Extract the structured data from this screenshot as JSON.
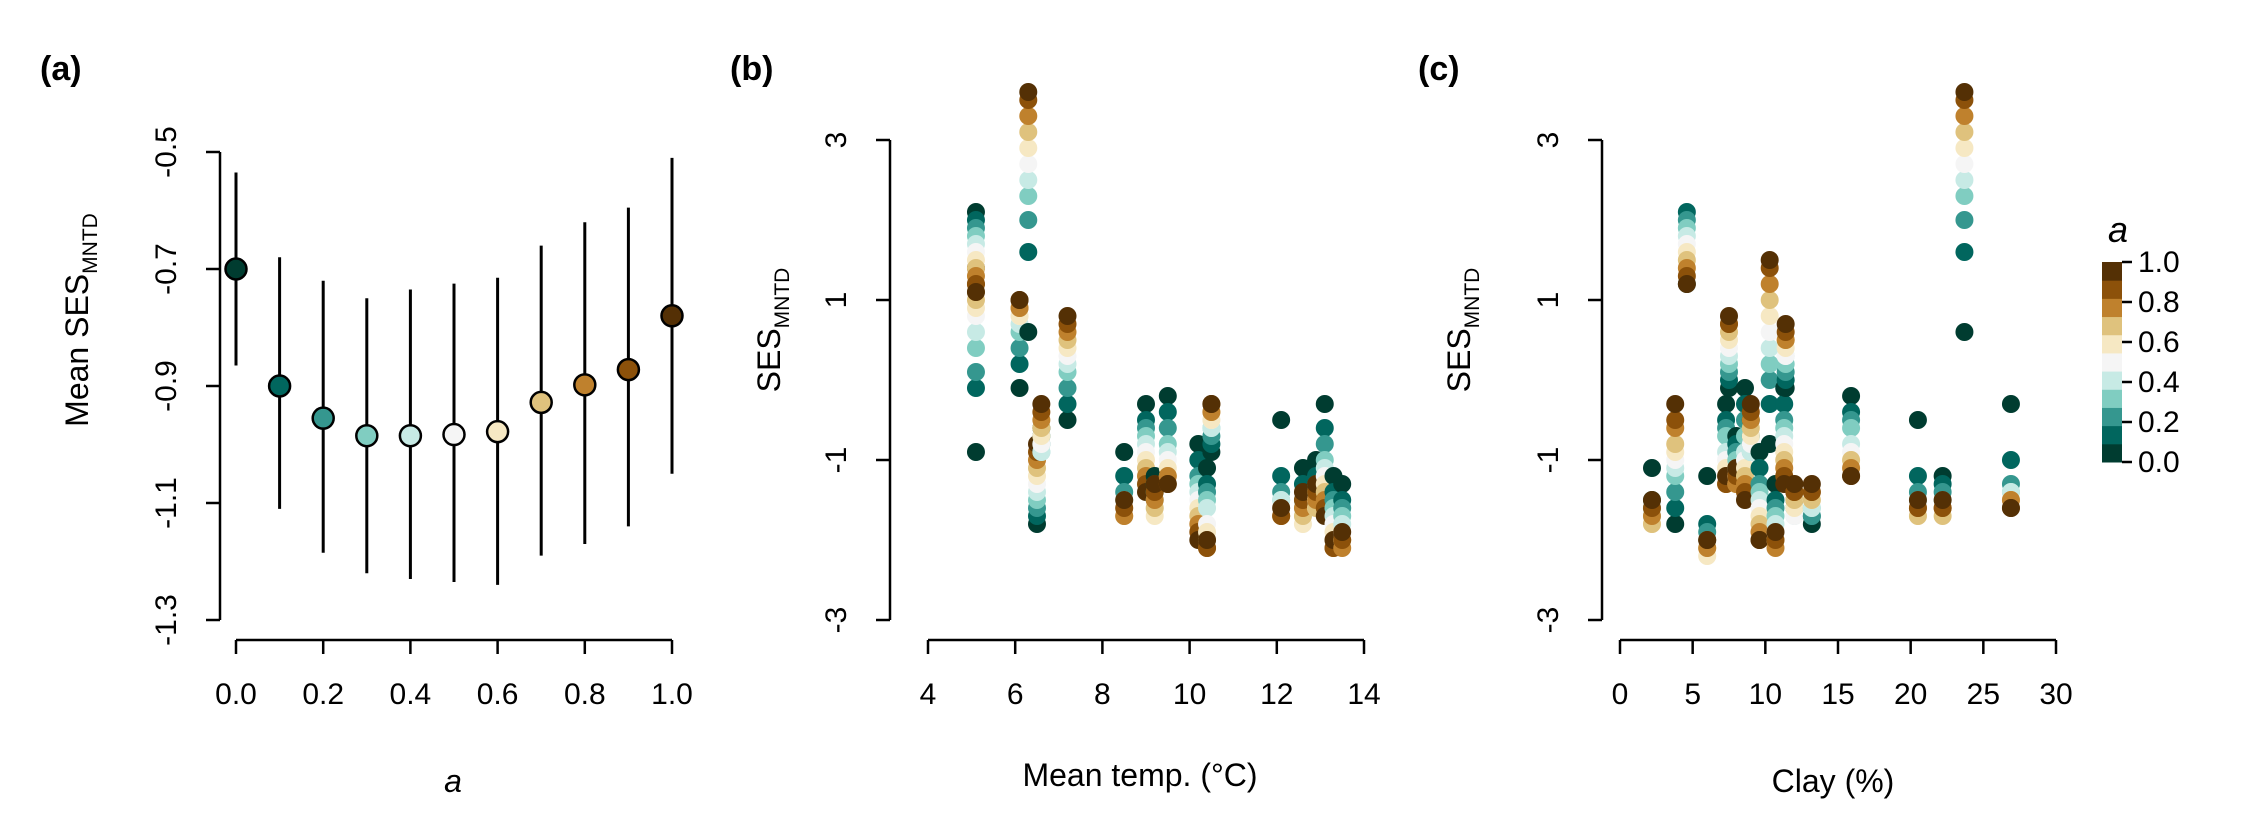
{
  "figure": {
    "background": "#ffffff"
  },
  "palette": [
    "#003c30",
    "#01665e",
    "#35978f",
    "#80cdc1",
    "#c7eae5",
    "#f5f5f5",
    "#f6e8c3",
    "#dfc27d",
    "#bf812d",
    "#8c510a",
    "#543005"
  ],
  "panels": {
    "a": {
      "label": "(a)",
      "xlabel": "a",
      "ylabel_main": "Mean SES",
      "ylabel_sub": "MNTD",
      "xticks": [
        "0.0",
        "0.2",
        "0.4",
        "0.6",
        "0.8",
        "1.0"
      ],
      "yticks": [
        "-0.5",
        "-0.7",
        "-0.9",
        "-1.1",
        "-1.3"
      ]
    },
    "b": {
      "label": "(b)",
      "xlabel": "Mean temp. (°C)",
      "ylabel_main": "SES",
      "ylabel_sub": "MNTD",
      "xticks": [
        "4",
        "6",
        "8",
        "10",
        "12",
        "14"
      ],
      "yticks": [
        "3",
        "1",
        "-1",
        "-3"
      ]
    },
    "c": {
      "label": "(c)",
      "xlabel": "Clay (%)",
      "ylabel_main": "SES",
      "ylabel_sub": "MNTD",
      "xticks": [
        "0",
        "5",
        "10",
        "15",
        "20",
        "25",
        "30"
      ],
      "yticks": [
        "3",
        "1",
        "-1",
        "-3"
      ]
    }
  },
  "legend": {
    "title": "a",
    "labels": [
      "1.0",
      "0.8",
      "0.6",
      "0.4",
      "0.2",
      "0.0"
    ]
  },
  "chart_data": [
    {
      "type": "scatter",
      "panel": "a",
      "x": [
        0.0,
        0.1,
        0.2,
        0.3,
        0.4,
        0.5,
        0.6,
        0.7,
        0.8,
        0.9,
        1.0
      ],
      "y": [
        -0.7,
        -0.9,
        -0.955,
        -0.985,
        -0.985,
        -0.983,
        -0.978,
        -0.928,
        -0.898,
        -0.872,
        -0.78
      ],
      "ci_low": [
        -0.865,
        -1.11,
        -1.185,
        -1.22,
        -1.23,
        -1.235,
        -1.24,
        -1.19,
        -1.17,
        -1.14,
        -1.05
      ],
      "ci_high": [
        -0.535,
        -0.68,
        -0.72,
        -0.75,
        -0.735,
        -0.725,
        -0.715,
        -0.66,
        -0.62,
        -0.595,
        -0.51
      ],
      "xlabel": "a",
      "ylabel": "Mean SESMNTD",
      "xlim": [
        0,
        1
      ],
      "ylim": [
        -1.3,
        -0.5
      ],
      "grid": false
    },
    {
      "type": "scatter",
      "panel": "b",
      "xlabel": "Mean temp. (°C)",
      "ylabel": "SESMNTD",
      "xlim": [
        4,
        14
      ],
      "ylim": [
        -3,
        3
      ],
      "grid": false,
      "color_by": "a",
      "a_levels": [
        0.0,
        0.1,
        0.2,
        0.3,
        0.4,
        0.5,
        0.6,
        0.7,
        0.8,
        0.9,
        1.0
      ],
      "sites": [
        {
          "x": 5.1,
          "y": [
            -0.9,
            -0.1,
            0.1,
            0.4,
            0.6,
            0.8,
            0.9,
            1.0,
            1.1,
            1.2,
            1.4
          ]
        },
        {
          "x": 5.1,
          "y": [
            2.1,
            2.0,
            1.9,
            1.8,
            1.7,
            1.6,
            1.5,
            1.4,
            1.3,
            1.2,
            1.1
          ]
        },
        {
          "x": 6.1,
          "y": [
            -0.1,
            0.2,
            0.4,
            0.6,
            0.7,
            0.8,
            0.8,
            0.9,
            0.9,
            1.0,
            1.0
          ]
        },
        {
          "x": 6.3,
          "y": [
            0.6,
            1.6,
            2.0,
            2.3,
            2.5,
            2.7,
            2.9,
            3.1,
            3.3,
            3.5,
            3.6
          ]
        },
        {
          "x": 6.5,
          "y": [
            -1.8,
            -1.7,
            -1.6,
            -1.5,
            -1.4,
            -1.3,
            -1.2,
            -1.1,
            -1.0,
            -0.9,
            -0.8
          ]
        },
        {
          "x": 6.6,
          "y": [
            -0.6,
            -0.7,
            -0.8,
            -0.9,
            -0.9,
            -0.8,
            -0.7,
            -0.6,
            -0.5,
            -0.4,
            -0.3
          ]
        },
        {
          "x": 7.2,
          "y": [
            -0.5,
            -0.3,
            -0.1,
            0.1,
            0.2,
            0.3,
            0.4,
            0.5,
            0.6,
            0.7,
            0.8
          ]
        },
        {
          "x": 8.5,
          "y": [
            -0.9,
            -1.2,
            -1.4,
            -1.5,
            -1.5,
            -1.6,
            -1.6,
            -1.7,
            -1.7,
            -1.6,
            -1.5
          ]
        },
        {
          "x": 9.0,
          "y": [
            -0.3,
            -0.5,
            -0.6,
            -0.7,
            -0.8,
            -0.9,
            -1.0,
            -1.1,
            -1.2,
            -1.3,
            -1.4
          ]
        },
        {
          "x": 9.2,
          "y": [
            -1.2,
            -1.3,
            -1.4,
            -1.5,
            -1.6,
            -1.6,
            -1.7,
            -1.6,
            -1.5,
            -1.4,
            -1.3
          ]
        },
        {
          "x": 9.5,
          "y": [
            -0.2,
            -0.4,
            -0.6,
            -0.8,
            -0.9,
            -1.0,
            -1.1,
            -1.2,
            -1.2,
            -1.3,
            -1.3
          ]
        },
        {
          "x": 10.2,
          "y": [
            -0.8,
            -1.0,
            -1.2,
            -1.3,
            -1.4,
            -1.5,
            -1.6,
            -1.7,
            -1.8,
            -1.9,
            -2.0
          ]
        },
        {
          "x": 10.4,
          "y": [
            -1.1,
            -1.3,
            -1.4,
            -1.5,
            -1.6,
            -1.8,
            -1.9,
            -2.0,
            -2.1,
            -2.1,
            -2.0
          ]
        },
        {
          "x": 10.5,
          "y": [
            -0.9,
            -0.8,
            -0.7,
            -0.6,
            -0.6,
            -0.5,
            -0.5,
            -0.4,
            -0.4,
            -0.3,
            -0.3
          ]
        },
        {
          "x": 12.1,
          "y": [
            -0.5,
            -1.2,
            -1.4,
            -1.5,
            -1.5,
            -1.6,
            -1.6,
            -1.7,
            -1.7,
            -1.7,
            -1.6
          ]
        },
        {
          "x": 12.6,
          "y": [
            -1.1,
            -1.3,
            -1.5,
            -1.6,
            -1.7,
            -1.8,
            -1.8,
            -1.7,
            -1.6,
            -1.5,
            -1.4
          ]
        },
        {
          "x": 12.9,
          "y": [
            -1.0,
            -1.2,
            -1.3,
            -1.4,
            -1.5,
            -1.5,
            -1.6,
            -1.6,
            -1.5,
            -1.4,
            -1.3
          ]
        },
        {
          "x": 13.1,
          "y": [
            -0.3,
            -0.6,
            -0.8,
            -1.0,
            -1.1,
            -1.2,
            -1.3,
            -1.4,
            -1.5,
            -1.6,
            -1.7
          ]
        },
        {
          "x": 13.3,
          "y": [
            -1.2,
            -1.4,
            -1.5,
            -1.6,
            -1.7,
            -1.8,
            -1.9,
            -2.0,
            -2.1,
            -2.1,
            -2.0
          ]
        },
        {
          "x": 13.5,
          "y": [
            -1.3,
            -1.5,
            -1.6,
            -1.7,
            -1.8,
            -1.9,
            -2.0,
            -2.0,
            -2.1,
            -2.0,
            -1.9
          ]
        }
      ]
    },
    {
      "type": "scatter",
      "panel": "c",
      "xlabel": "Clay (%)",
      "ylabel": "SESMNTD",
      "xlim": [
        0,
        30
      ],
      "ylim": [
        -3,
        3
      ],
      "grid": false,
      "color_by": "a",
      "a_levels": [
        0.0,
        0.1,
        0.2,
        0.3,
        0.4,
        0.5,
        0.6,
        0.7,
        0.8,
        0.9,
        1.0
      ],
      "sites": [
        {
          "x": 2.2,
          "y": [
            -1.1,
            -1.5,
            -1.6,
            -1.7,
            -1.7,
            -1.8,
            -1.8,
            -1.8,
            -1.7,
            -1.6,
            -1.5
          ]
        },
        {
          "x": 3.8,
          "y": [
            -1.8,
            -1.6,
            -1.4,
            -1.2,
            -1.1,
            -1.0,
            -0.9,
            -0.8,
            -0.6,
            -0.5,
            -0.3
          ]
        },
        {
          "x": 4.6,
          "y": [
            1.2,
            2.1,
            2.0,
            1.9,
            1.8,
            1.7,
            1.6,
            1.5,
            1.4,
            1.3,
            1.2
          ]
        },
        {
          "x": 6.0,
          "y": [
            -1.2,
            -1.8,
            -1.9,
            -2.0,
            -2.1,
            -2.2,
            -2.2,
            -2.1,
            -2.1,
            -2.0,
            -2.0
          ]
        },
        {
          "x": 7.3,
          "y": [
            -0.3,
            -0.5,
            -0.6,
            -0.7,
            -0.9,
            -1.0,
            -1.1,
            -1.2,
            -1.3,
            -1.3,
            -1.2
          ]
        },
        {
          "x": 7.5,
          "y": [
            -0.1,
            0.0,
            0.1,
            0.2,
            0.3,
            0.4,
            0.5,
            0.6,
            0.7,
            0.7,
            0.8
          ]
        },
        {
          "x": 8.0,
          "y": [
            -0.7,
            -0.8,
            -0.9,
            -1.0,
            -1.1,
            -1.2,
            -1.2,
            -1.3,
            -1.3,
            -1.2,
            -1.1
          ]
        },
        {
          "x": 8.6,
          "y": [
            -0.1,
            -0.3,
            -0.5,
            -0.7,
            -0.9,
            -1.0,
            -1.1,
            -1.2,
            -1.3,
            -1.4,
            -1.5
          ]
        },
        {
          "x": 9.0,
          "y": [
            -0.5,
            -0.7,
            -0.8,
            -0.9,
            -0.9,
            -0.8,
            -0.7,
            -0.6,
            -0.5,
            -0.4,
            -0.3
          ]
        },
        {
          "x": 9.6,
          "y": [
            -0.9,
            -1.1,
            -1.3,
            -1.4,
            -1.5,
            -1.6,
            -1.7,
            -1.8,
            -1.9,
            -2.0,
            -2.0
          ]
        },
        {
          "x": 10.3,
          "y": [
            -0.8,
            -0.3,
            0.0,
            0.2,
            0.4,
            0.6,
            0.8,
            1.0,
            1.2,
            1.4,
            1.5
          ]
        },
        {
          "x": 10.7,
          "y": [
            -1.3,
            -1.5,
            -1.6,
            -1.7,
            -1.8,
            -1.9,
            -2.0,
            -2.0,
            -2.1,
            -2.0,
            -1.9
          ]
        },
        {
          "x": 11.3,
          "y": [
            -0.1,
            -0.3,
            -0.5,
            -0.6,
            -0.7,
            -0.8,
            -0.9,
            -1.0,
            -1.1,
            -1.2,
            -1.3
          ]
        },
        {
          "x": 11.4,
          "y": [
            -0.1,
            0.0,
            0.1,
            0.2,
            0.3,
            0.3,
            0.4,
            0.5,
            0.5,
            0.6,
            0.7
          ]
        },
        {
          "x": 12.0,
          "y": [
            -1.4,
            -1.5,
            -1.6,
            -1.6,
            -1.7,
            -1.7,
            -1.6,
            -1.5,
            -1.4,
            -1.4,
            -1.3
          ]
        },
        {
          "x": 13.2,
          "y": [
            -1.8,
            -1.7,
            -1.7,
            -1.6,
            -1.6,
            -1.5,
            -1.5,
            -1.5,
            -1.4,
            -1.4,
            -1.3
          ]
        },
        {
          "x": 15.9,
          "y": [
            -0.2,
            -0.4,
            -0.5,
            -0.6,
            -0.8,
            -0.9,
            -1.0,
            -1.0,
            -1.1,
            -1.2,
            -1.2
          ]
        },
        {
          "x": 20.5,
          "y": [
            -0.5,
            -1.2,
            -1.4,
            -1.5,
            -1.6,
            -1.6,
            -1.7,
            -1.7,
            -1.6,
            -1.6,
            -1.5
          ]
        },
        {
          "x": 22.2,
          "y": [
            -1.2,
            -1.3,
            -1.4,
            -1.5,
            -1.6,
            -1.6,
            -1.6,
            -1.7,
            -1.6,
            -1.6,
            -1.5
          ]
        },
        {
          "x": 23.7,
          "y": [
            0.6,
            1.6,
            2.0,
            2.3,
            2.5,
            2.7,
            2.9,
            3.1,
            3.3,
            3.5,
            3.6
          ]
        },
        {
          "x": 26.9,
          "y": [
            -0.3,
            -1.0,
            -1.3,
            -1.4,
            -1.4,
            -1.5,
            -1.5,
            -1.5,
            -1.5,
            -1.6,
            -1.6
          ]
        }
      ]
    }
  ]
}
